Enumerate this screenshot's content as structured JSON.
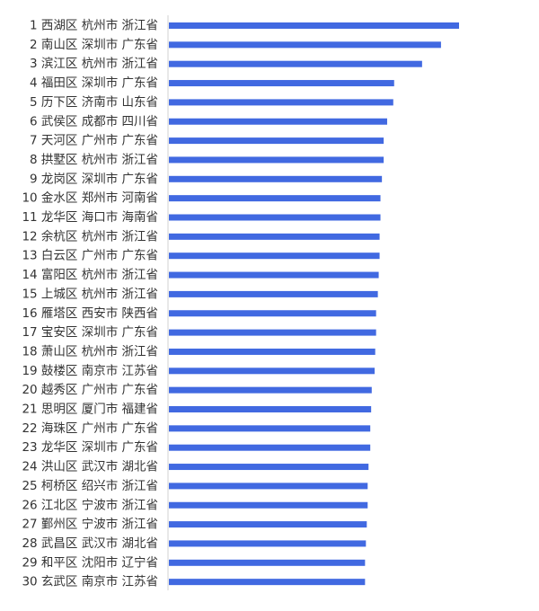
{
  "chart_data": {
    "type": "bar",
    "orientation": "horizontal",
    "categories": [
      "1 西湖区 杭州市 浙江省",
      "2 南山区 深圳市 广东省",
      "3 滨江区 杭州市 浙江省",
      "4 福田区 深圳市 广东省",
      "5 历下区 济南市 山东省",
      "6 武侯区 成都市 四川省",
      "7 天河区 广州市 广东省",
      "8 拱墅区 杭州市 浙江省",
      "9 龙岗区 深圳市 广东省",
      "10 金水区 郑州市 河南省",
      "11 龙华区 海口市 海南省",
      "12 余杭区 杭州市 浙江省",
      "13 白云区 广州市 广东省",
      "14 富阳区 杭州市 浙江省",
      "15 上城区 杭州市 浙江省",
      "16 雁塔区 西安市 陕西省",
      "17 宝安区 深圳市 广东省",
      "18 萧山区 杭州市 浙江省",
      "19 鼓楼区 南京市 江苏省",
      "20 越秀区 广州市 广东省",
      "21 思明区 厦门市 福建省",
      "22 海珠区 广州市 广东省",
      "23 龙华区 深圳市 广东省",
      "24 洪山区 武汉市 湖北省",
      "25 柯桥区 绍兴市 浙江省",
      "26 江北区 宁波市 浙江省",
      "27 鄞州区 宁波市 浙江省",
      "28 武昌区 武汉市 湖北省",
      "29 和平区 沈阳市 辽宁省",
      "30 玄武区 南京市 江苏省"
    ],
    "values": [
      100,
      93.8,
      87.3,
      77.7,
      77.4,
      75.3,
      74.1,
      74.1,
      73.5,
      73.0,
      73.0,
      72.7,
      72.7,
      72.4,
      72.1,
      71.5,
      71.5,
      71.2,
      71.0,
      70.0,
      69.8,
      69.5,
      69.5,
      68.9,
      68.6,
      68.6,
      68.3,
      68.0,
      67.7,
      67.7
    ],
    "xlim": [
      0,
      100
    ],
    "title": "",
    "xlabel": "",
    "ylabel": "",
    "grid": false,
    "legend": "none",
    "bar_color": "#4169E1",
    "axis_color": "#d0d0d0",
    "label_color": "#333333"
  }
}
